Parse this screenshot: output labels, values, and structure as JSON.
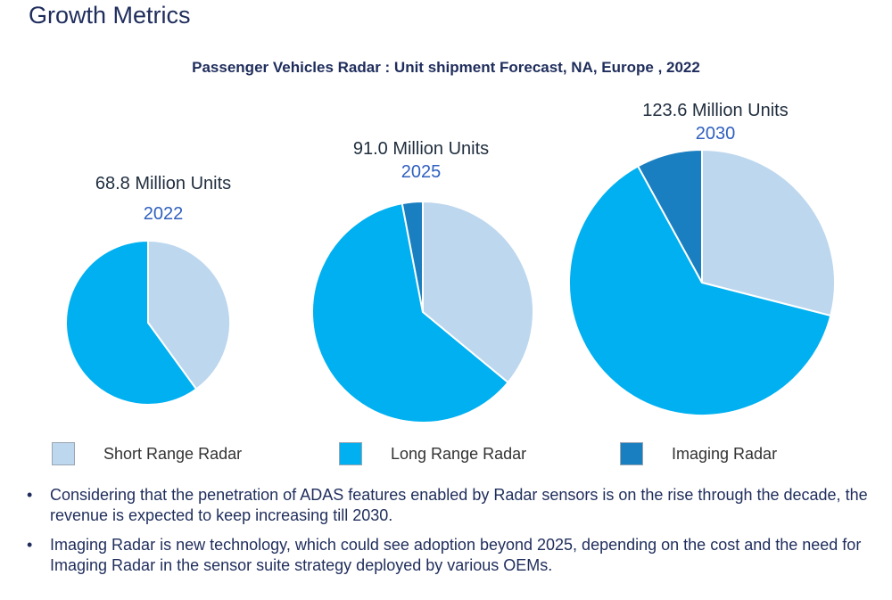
{
  "page": {
    "title": "Growth Metrics"
  },
  "chart_data": {
    "type": "pie",
    "title": "Passenger Vehicles Radar : Unit shipment Forecast, NA, Europe , 2022",
    "categories": [
      "Short Range Radar",
      "Long Range Radar",
      "Imaging Radar"
    ],
    "colors": [
      "#bdd7ee",
      "#00b0f0",
      "#1a7fc1"
    ],
    "pies": [
      {
        "year": "2022",
        "total_label": "68.8 Million Units",
        "total": 68.8,
        "values_pct": [
          40,
          60,
          0
        ]
      },
      {
        "year": "2025",
        "total_label": "91.0 Million Units",
        "total": 91.0,
        "values_pct": [
          36,
          61,
          3
        ]
      },
      {
        "year": "2030",
        "total_label": "123.6 Million Units",
        "total": 123.6,
        "values_pct": [
          29,
          63,
          8
        ]
      }
    ]
  },
  "legend": {
    "items": [
      {
        "label": "Short Range Radar",
        "color": "#bdd7ee"
      },
      {
        "label": "Long Range Radar",
        "color": "#00b0f0"
      },
      {
        "label": "Imaging Radar",
        "color": "#1a7fc1"
      }
    ]
  },
  "notes": [
    "Considering that the penetration of ADAS features enabled by Radar sensors is on the rise through the decade, the revenue is expected to keep increasing till 2030.",
    "Imaging Radar is new technology, which could see adoption beyond 2025, depending on the cost and the need for Imaging Radar in the sensor suite strategy deployed by various OEMs."
  ]
}
